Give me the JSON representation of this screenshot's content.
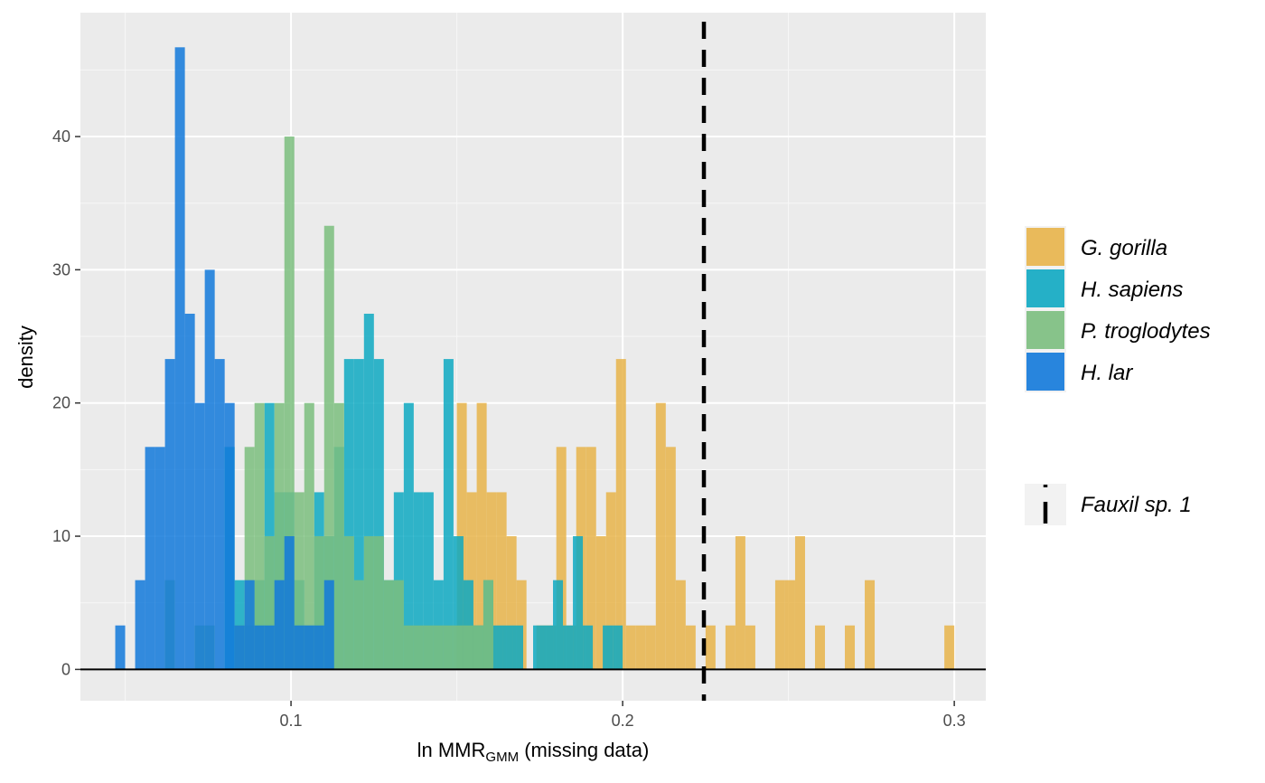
{
  "chart_data": {
    "type": "histogram",
    "xlabel_main": "ln MMR",
    "xlabel_sub": "GMM",
    "xlabel_suffix": " (missing data)",
    "ylabel": "density",
    "xlim": [
      0.0365,
      0.3095
    ],
    "ylim": [
      -2.35,
      49.3
    ],
    "x_ticks": [
      0.1,
      0.2,
      0.3
    ],
    "x_tick_labels": [
      "0.1",
      "0.2",
      "0.3"
    ],
    "y_ticks": [
      0,
      10,
      20,
      30,
      40
    ],
    "y_tick_labels": [
      "0",
      "10",
      "20",
      "30",
      "40"
    ],
    "bin_width": 0.003,
    "grid": true,
    "legend_position": "right",
    "reference_line": {
      "name": "Fauxil sp. 1",
      "x": 0.2245,
      "style": "dashed",
      "color": "#000000"
    },
    "series": [
      {
        "name": "G. gorilla",
        "color": "#E8B44A",
        "bins": [
          [
            0.15,
            20
          ],
          [
            0.153,
            13.3
          ],
          [
            0.156,
            20
          ],
          [
            0.159,
            13.3
          ],
          [
            0.162,
            13.3
          ],
          [
            0.165,
            10
          ],
          [
            0.168,
            6.7
          ],
          [
            0.174,
            3.3
          ],
          [
            0.177,
            3.3
          ],
          [
            0.18,
            16.7
          ],
          [
            0.183,
            3.3
          ],
          [
            0.186,
            16.7
          ],
          [
            0.189,
            16.7
          ],
          [
            0.192,
            10
          ],
          [
            0.195,
            13.3
          ],
          [
            0.198,
            23.3
          ],
          [
            0.201,
            3.3
          ],
          [
            0.204,
            3.3
          ],
          [
            0.207,
            3.3
          ],
          [
            0.21,
            20
          ],
          [
            0.213,
            16.7
          ],
          [
            0.216,
            6.7
          ],
          [
            0.219,
            3.3
          ],
          [
            0.225,
            3.3
          ],
          [
            0.231,
            3.3
          ],
          [
            0.234,
            10
          ],
          [
            0.237,
            3.3
          ],
          [
            0.246,
            6.7
          ],
          [
            0.249,
            6.7
          ],
          [
            0.252,
            10
          ],
          [
            0.258,
            3.3
          ],
          [
            0.267,
            3.3
          ],
          [
            0.273,
            6.7
          ],
          [
            0.297,
            3.3
          ]
        ]
      },
      {
        "name": "H. sapiens",
        "color": "#0EA9C2",
        "bins": [
          [
            0.08,
            16.7
          ],
          [
            0.083,
            6.7
          ],
          [
            0.086,
            3.3
          ],
          [
            0.089,
            6.7
          ],
          [
            0.092,
            20
          ],
          [
            0.095,
            13.3
          ],
          [
            0.098,
            13.3
          ],
          [
            0.101,
            6.7
          ],
          [
            0.104,
            3.3
          ],
          [
            0.107,
            13.3
          ],
          [
            0.11,
            10
          ],
          [
            0.113,
            16.7
          ],
          [
            0.116,
            23.3
          ],
          [
            0.119,
            23.3
          ],
          [
            0.122,
            26.7
          ],
          [
            0.125,
            23.3
          ],
          [
            0.128,
            6.7
          ],
          [
            0.131,
            13.3
          ],
          [
            0.134,
            20
          ],
          [
            0.137,
            13.3
          ],
          [
            0.14,
            13.3
          ],
          [
            0.143,
            6.7
          ],
          [
            0.146,
            23.3
          ],
          [
            0.149,
            10
          ],
          [
            0.152,
            6.7
          ],
          [
            0.155,
            3.3
          ],
          [
            0.158,
            6.7
          ],
          [
            0.161,
            3.3
          ],
          [
            0.164,
            3.3
          ],
          [
            0.167,
            3.3
          ],
          [
            0.173,
            3.3
          ],
          [
            0.176,
            3.3
          ],
          [
            0.179,
            6.7
          ],
          [
            0.182,
            3.3
          ],
          [
            0.185,
            10
          ],
          [
            0.188,
            3.3
          ],
          [
            0.194,
            3.3
          ],
          [
            0.197,
            3.3
          ]
        ]
      },
      {
        "name": "P. troglodytes",
        "color": "#7BBE7E",
        "bins": [
          [
            0.062,
            6.7
          ],
          [
            0.071,
            3.3
          ],
          [
            0.074,
            3.3
          ],
          [
            0.083,
            3.3
          ],
          [
            0.086,
            16.7
          ],
          [
            0.089,
            20
          ],
          [
            0.092,
            10
          ],
          [
            0.095,
            20
          ],
          [
            0.098,
            40
          ],
          [
            0.101,
            13.3
          ],
          [
            0.104,
            20
          ],
          [
            0.107,
            10
          ],
          [
            0.11,
            33.3
          ],
          [
            0.113,
            20
          ],
          [
            0.116,
            10
          ],
          [
            0.119,
            6.7
          ],
          [
            0.122,
            10
          ],
          [
            0.125,
            10
          ],
          [
            0.128,
            6.7
          ],
          [
            0.131,
            6.7
          ],
          [
            0.134,
            3.3
          ],
          [
            0.137,
            3.3
          ],
          [
            0.14,
            3.3
          ],
          [
            0.143,
            3.3
          ],
          [
            0.146,
            3.3
          ],
          [
            0.149,
            3.3
          ],
          [
            0.152,
            3.3
          ],
          [
            0.155,
            3.3
          ],
          [
            0.158,
            6.7
          ]
        ]
      },
      {
        "name": "H. lar",
        "color": "#1279DA",
        "bins": [
          [
            0.047,
            3.3
          ],
          [
            0.053,
            6.7
          ],
          [
            0.056,
            16.7
          ],
          [
            0.059,
            16.7
          ],
          [
            0.062,
            23.3
          ],
          [
            0.065,
            46.7
          ],
          [
            0.068,
            26.7
          ],
          [
            0.071,
            20
          ],
          [
            0.074,
            30
          ],
          [
            0.077,
            23.3
          ],
          [
            0.08,
            20
          ],
          [
            0.083,
            3.3
          ],
          [
            0.086,
            6.7
          ],
          [
            0.089,
            3.3
          ],
          [
            0.092,
            3.3
          ],
          [
            0.095,
            6.7
          ],
          [
            0.098,
            10
          ],
          [
            0.101,
            3.3
          ],
          [
            0.104,
            3.3
          ],
          [
            0.107,
            3.3
          ],
          [
            0.11,
            6.7
          ]
        ]
      }
    ]
  }
}
